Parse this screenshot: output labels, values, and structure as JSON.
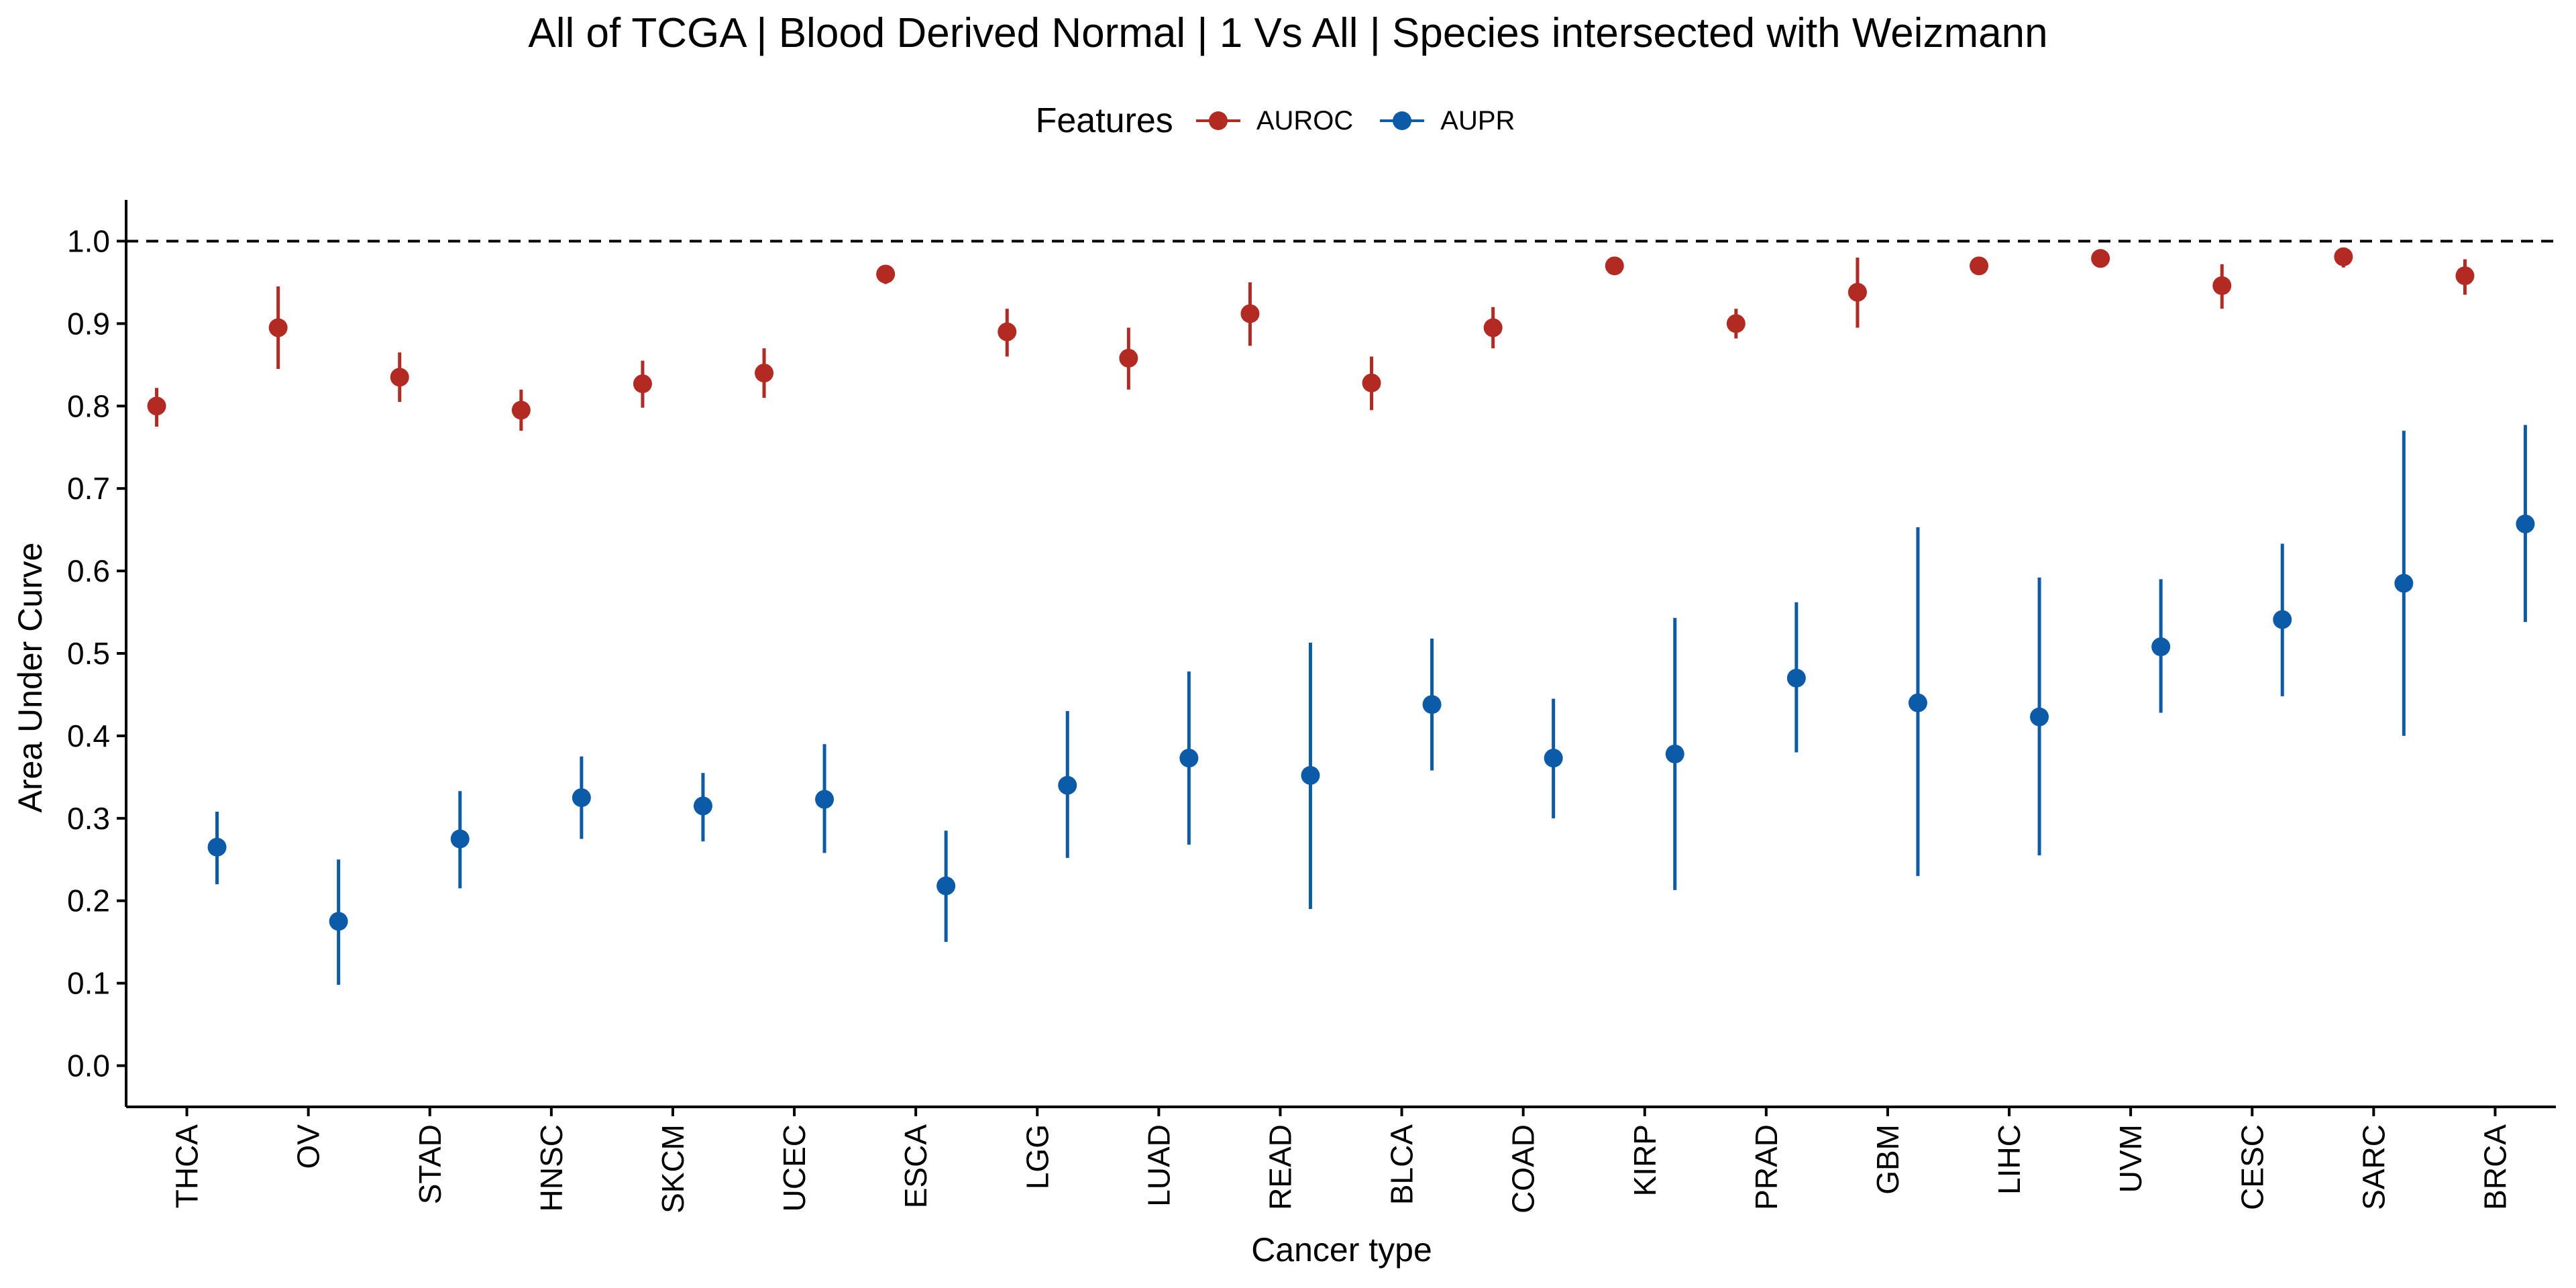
{
  "colors": {
    "AUROC": "#B22A22",
    "AUPR": "#0B5BA8",
    "axis": "#000000",
    "reference_line": "#000000"
  },
  "chart_data": {
    "type": "scatter",
    "subtype": "point-range",
    "title": "All of TCGA | Blood Derived Normal | 1 Vs All | Species intersected with Weizmann",
    "xlabel": "Cancer type",
    "ylabel": "Area Under Curve",
    "ylim": [
      -0.05,
      1.05
    ],
    "yticks": [
      "0.0",
      "0.1",
      "0.2",
      "0.3",
      "0.4",
      "0.5",
      "0.6",
      "0.7",
      "0.8",
      "0.9",
      "1.0"
    ],
    "reference_line": {
      "y": 1.0,
      "style": "dashed"
    },
    "grid": false,
    "legend": {
      "title": "Features",
      "position": "top",
      "entries": [
        "AUROC",
        "AUPR"
      ]
    },
    "categories": [
      "THCA",
      "OV",
      "STAD",
      "HNSC",
      "SKCM",
      "UCEC",
      "ESCA",
      "LGG",
      "LUAD",
      "READ",
      "BLCA",
      "COAD",
      "KIRP",
      "PRAD",
      "GBM",
      "LIHC",
      "UVM",
      "CESC",
      "SARC",
      "BRCA"
    ],
    "series": [
      {
        "name": "AUROC",
        "values": [
          0.8,
          0.895,
          0.835,
          0.795,
          0.827,
          0.84,
          0.96,
          0.89,
          0.858,
          0.912,
          0.828,
          0.895,
          0.97,
          0.9,
          0.938,
          0.97,
          0.979,
          0.946,
          0.981,
          0.958
        ],
        "lower": [
          0.775,
          0.845,
          0.805,
          0.77,
          0.798,
          0.81,
          0.948,
          0.86,
          0.82,
          0.873,
          0.795,
          0.87,
          0.962,
          0.882,
          0.895,
          0.96,
          0.972,
          0.918,
          0.968,
          0.935
        ],
        "upper": [
          0.822,
          0.945,
          0.865,
          0.82,
          0.855,
          0.87,
          0.97,
          0.918,
          0.895,
          0.95,
          0.86,
          0.92,
          0.978,
          0.918,
          0.98,
          0.98,
          0.985,
          0.972,
          0.992,
          0.978
        ]
      },
      {
        "name": "AUPR",
        "values": [
          0.265,
          0.175,
          0.275,
          0.325,
          0.315,
          0.323,
          0.218,
          0.34,
          0.373,
          0.352,
          0.438,
          0.373,
          0.378,
          0.47,
          0.44,
          0.423,
          0.508,
          0.541,
          0.585,
          0.657
        ],
        "lower": [
          0.22,
          0.098,
          0.215,
          0.275,
          0.272,
          0.258,
          0.15,
          0.252,
          0.268,
          0.19,
          0.358,
          0.3,
          0.213,
          0.38,
          0.23,
          0.255,
          0.428,
          0.448,
          0.4,
          0.538
        ],
        "upper": [
          0.308,
          0.25,
          0.333,
          0.375,
          0.355,
          0.39,
          0.285,
          0.43,
          0.478,
          0.513,
          0.518,
          0.445,
          0.543,
          0.562,
          0.653,
          0.592,
          0.59,
          0.633,
          0.77,
          0.777
        ]
      }
    ]
  }
}
